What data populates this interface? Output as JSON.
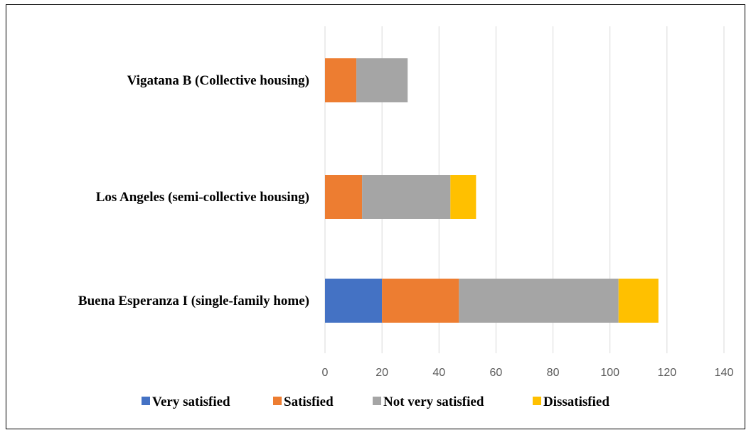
{
  "chart_data": {
    "type": "bar",
    "orientation": "horizontal",
    "stacked": true,
    "categories": [
      "Buena Esperanza I (single-family home)",
      "Los Angeles (semi-collective housing)",
      "Vigatana B (Collective housing)"
    ],
    "series": [
      {
        "name": "Very satisfied",
        "values": [
          20,
          0,
          0
        ],
        "color": "#4472C4"
      },
      {
        "name": "Satisfied",
        "values": [
          27,
          13,
          11
        ],
        "color": "#ED7D31"
      },
      {
        "name": "Not very satisfied",
        "values": [
          56,
          31,
          18
        ],
        "color": "#A5A5A5"
      },
      {
        "name": "Dissatisfied",
        "values": [
          14,
          9,
          0
        ],
        "color": "#FFC000"
      }
    ],
    "xlim": [
      0,
      140
    ],
    "xticks": [
      "0",
      "20",
      "40",
      "60",
      "80",
      "100",
      "120",
      "140"
    ],
    "grid": true,
    "legend_position": "bottom",
    "title": "",
    "xlabel": "",
    "ylabel": ""
  }
}
